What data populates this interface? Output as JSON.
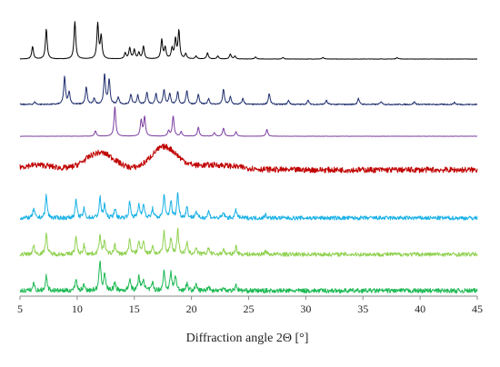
{
  "chart_data": {
    "type": "line",
    "title": "",
    "xlabel": "Diffraction angle 2Θ [°]",
    "ylabel": "",
    "xlim": [
      5,
      45
    ],
    "xticks": [
      "5",
      "10",
      "15",
      "20",
      "25",
      "30",
      "35",
      "40",
      "45"
    ],
    "grid": false,
    "legend": "none",
    "y_units": "arbitrary intensity, traces stacked with vertical offset",
    "series": [
      {
        "color": "#000000",
        "noise": 0.003,
        "peaks": [
          [
            6.1,
            0.25
          ],
          [
            7.3,
            0.6
          ],
          [
            9.8,
            0.75
          ],
          [
            11.8,
            0.7
          ],
          [
            12.1,
            0.45
          ],
          [
            14.2,
            0.12
          ],
          [
            14.6,
            0.22
          ],
          [
            15.0,
            0.18
          ],
          [
            15.4,
            0.12
          ],
          [
            15.8,
            0.25
          ],
          [
            17.4,
            0.38
          ],
          [
            17.7,
            0.22
          ],
          [
            18.3,
            0.2
          ],
          [
            18.6,
            0.38
          ],
          [
            18.9,
            0.55
          ],
          [
            19.5,
            0.1
          ],
          [
            20.4,
            0.06
          ],
          [
            21.4,
            0.12
          ],
          [
            22.3,
            0.06
          ],
          [
            23.4,
            0.1
          ],
          [
            23.8,
            0.06
          ],
          [
            25.6,
            0.04
          ],
          [
            28.0,
            0.03
          ],
          [
            31.5,
            0.03
          ],
          [
            38.0,
            0.03
          ]
        ]
      },
      {
        "color": "#1f2f6e",
        "noise": 0.012,
        "peaks": [
          [
            6.3,
            0.05
          ],
          [
            8.9,
            0.55
          ],
          [
            9.3,
            0.25
          ],
          [
            10.8,
            0.35
          ],
          [
            11.5,
            0.12
          ],
          [
            12.4,
            0.6
          ],
          [
            12.8,
            0.5
          ],
          [
            13.6,
            0.15
          ],
          [
            14.7,
            0.2
          ],
          [
            15.3,
            0.18
          ],
          [
            16.1,
            0.25
          ],
          [
            16.9,
            0.22
          ],
          [
            17.6,
            0.3
          ],
          [
            18.1,
            0.22
          ],
          [
            18.8,
            0.25
          ],
          [
            19.6,
            0.28
          ],
          [
            20.6,
            0.2
          ],
          [
            21.5,
            0.12
          ],
          [
            22.8,
            0.3
          ],
          [
            23.4,
            0.15
          ],
          [
            24.5,
            0.12
          ],
          [
            26.8,
            0.22
          ],
          [
            28.5,
            0.08
          ],
          [
            30.2,
            0.08
          ],
          [
            31.8,
            0.08
          ],
          [
            34.6,
            0.12
          ],
          [
            36.6,
            0.06
          ],
          [
            39.5,
            0.05
          ],
          [
            43.0,
            0.04
          ]
        ]
      },
      {
        "color": "#7b3fa0",
        "noise": 0.003,
        "peaks": [
          [
            11.6,
            0.12
          ],
          [
            13.3,
            0.65
          ],
          [
            15.6,
            0.35
          ],
          [
            15.9,
            0.42
          ],
          [
            18.0,
            0.12
          ],
          [
            18.4,
            0.45
          ],
          [
            19.1,
            0.1
          ],
          [
            20.6,
            0.2
          ],
          [
            22.0,
            0.08
          ],
          [
            22.8,
            0.18
          ],
          [
            23.9,
            0.1
          ],
          [
            26.6,
            0.15
          ]
        ]
      },
      {
        "color": "#c00000",
        "noise": 0.07,
        "humps": [
          [
            6.5,
            0.12,
            2.0
          ],
          [
            12.0,
            0.42,
            1.8
          ],
          [
            17.6,
            0.55,
            1.6
          ],
          [
            22.0,
            0.12,
            3.0
          ]
        ]
      },
      {
        "color": "#19b1e6",
        "noise": 0.045,
        "peaks": [
          [
            6.2,
            0.2
          ],
          [
            7.3,
            0.5
          ],
          [
            9.9,
            0.4
          ],
          [
            10.6,
            0.2
          ],
          [
            12.0,
            0.45
          ],
          [
            12.4,
            0.3
          ],
          [
            13.3,
            0.22
          ],
          [
            14.6,
            0.35
          ],
          [
            15.4,
            0.3
          ],
          [
            15.8,
            0.32
          ],
          [
            16.6,
            0.2
          ],
          [
            17.6,
            0.5
          ],
          [
            18.2,
            0.38
          ],
          [
            18.8,
            0.55
          ],
          [
            19.6,
            0.25
          ],
          [
            20.4,
            0.15
          ],
          [
            21.5,
            0.15
          ],
          [
            22.8,
            0.12
          ],
          [
            23.9,
            0.18
          ],
          [
            26.5,
            0.08
          ]
        ]
      },
      {
        "color": "#8fd14f",
        "noise": 0.045,
        "peaks": [
          [
            6.2,
            0.2
          ],
          [
            7.3,
            0.48
          ],
          [
            9.9,
            0.38
          ],
          [
            10.6,
            0.2
          ],
          [
            12.0,
            0.45
          ],
          [
            12.4,
            0.3
          ],
          [
            13.3,
            0.22
          ],
          [
            14.6,
            0.35
          ],
          [
            15.4,
            0.3
          ],
          [
            15.8,
            0.32
          ],
          [
            16.6,
            0.2
          ],
          [
            17.6,
            0.5
          ],
          [
            18.2,
            0.38
          ],
          [
            18.8,
            0.55
          ],
          [
            19.6,
            0.25
          ],
          [
            20.4,
            0.15
          ],
          [
            21.5,
            0.15
          ],
          [
            22.8,
            0.12
          ],
          [
            23.9,
            0.18
          ],
          [
            26.5,
            0.08
          ]
        ]
      },
      {
        "color": "#1db954",
        "noise": 0.045,
        "peaks": [
          [
            6.2,
            0.15
          ],
          [
            7.3,
            0.3
          ],
          [
            9.9,
            0.25
          ],
          [
            10.6,
            0.12
          ],
          [
            12.0,
            0.6
          ],
          [
            12.4,
            0.35
          ],
          [
            13.3,
            0.18
          ],
          [
            14.6,
            0.25
          ],
          [
            15.4,
            0.3
          ],
          [
            15.8,
            0.25
          ],
          [
            16.6,
            0.15
          ],
          [
            17.6,
            0.4
          ],
          [
            18.2,
            0.35
          ],
          [
            18.6,
            0.3
          ],
          [
            19.6,
            0.15
          ],
          [
            20.4,
            0.12
          ],
          [
            21.5,
            0.1
          ],
          [
            22.8,
            0.08
          ],
          [
            23.9,
            0.12
          ]
        ]
      }
    ]
  }
}
